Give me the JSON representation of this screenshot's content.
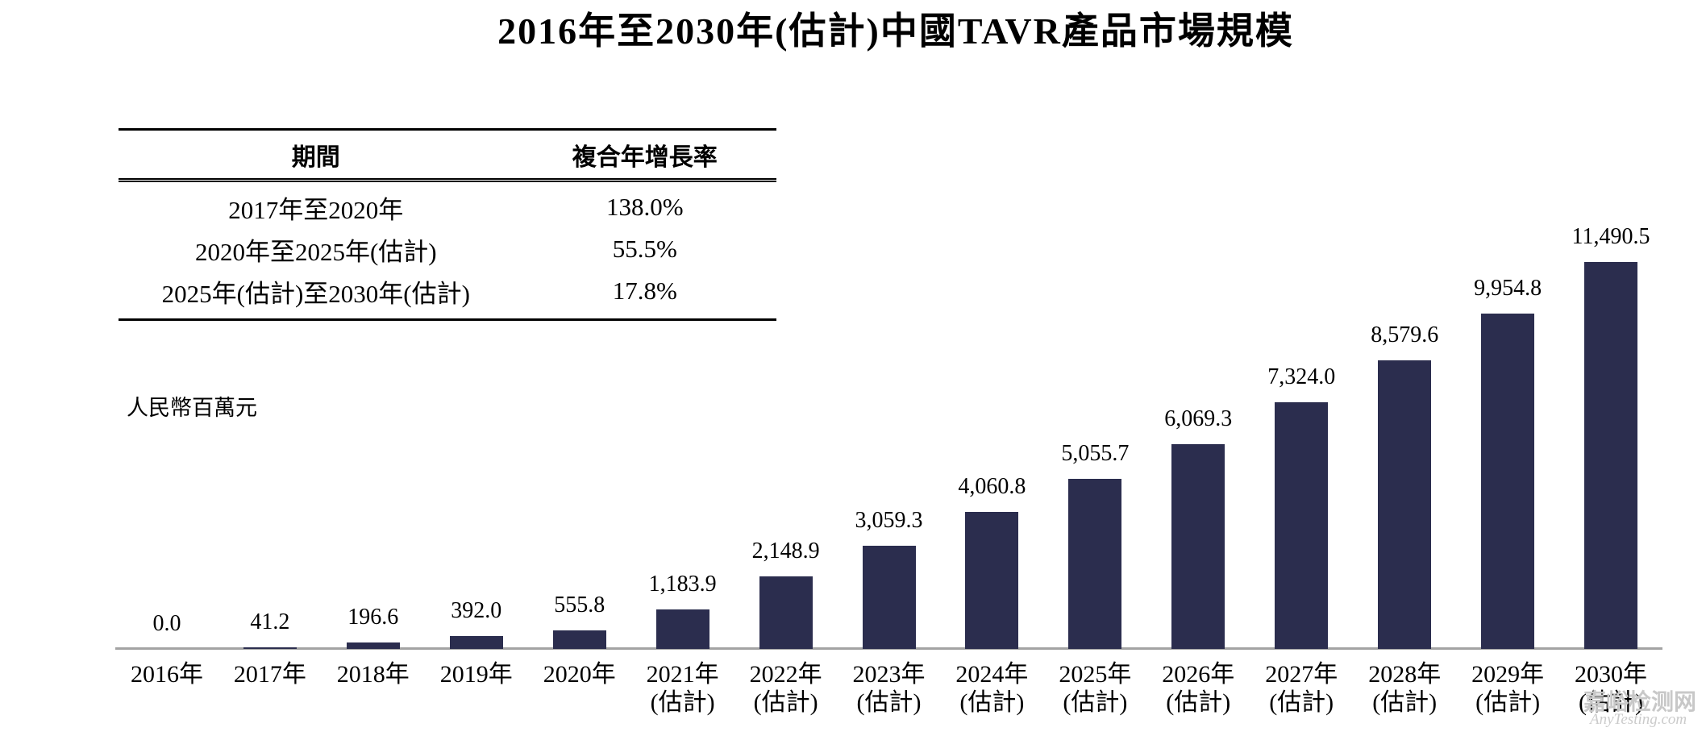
{
  "title": "2016年至2030年(估計)中國TAVR產品市場規模",
  "watermark": {
    "site_name": "嘉峪检测网",
    "site_url": "AnyTesting.com"
  },
  "chart_data": {
    "type": "bar",
    "title": "2016年至2030年(估計)中國TAVR產品市場規模",
    "unit_label": "人民幣百萬元",
    "xlabel": "",
    "ylabel": "人民幣百萬元",
    "ylim": [
      0,
      11490.5
    ],
    "grid": false,
    "legend": null,
    "bar_color": "#2B2D4E",
    "axis_color": "#A3A3A3",
    "categories": [
      {
        "label": "2016年",
        "sublabel": ""
      },
      {
        "label": "2017年",
        "sublabel": ""
      },
      {
        "label": "2018年",
        "sublabel": ""
      },
      {
        "label": "2019年",
        "sublabel": ""
      },
      {
        "label": "2020年",
        "sublabel": ""
      },
      {
        "label": "2021年",
        "sublabel": "(估計)"
      },
      {
        "label": "2022年",
        "sublabel": "(估計)"
      },
      {
        "label": "2023年",
        "sublabel": "(估計)"
      },
      {
        "label": "2024年",
        "sublabel": "(估計)"
      },
      {
        "label": "2025年",
        "sublabel": "(估計)"
      },
      {
        "label": "2026年",
        "sublabel": "(估計)"
      },
      {
        "label": "2027年",
        "sublabel": "(估計)"
      },
      {
        "label": "2028年",
        "sublabel": "(估計)"
      },
      {
        "label": "2029年",
        "sublabel": "(估計)"
      },
      {
        "label": "2030年",
        "sublabel": "(估計)"
      }
    ],
    "values": [
      0.0,
      41.2,
      196.6,
      392.0,
      555.8,
      1183.9,
      2148.9,
      3059.3,
      4060.8,
      5055.7,
      6069.3,
      7324.0,
      8579.6,
      9954.8,
      11490.5
    ],
    "value_labels": [
      "0.0",
      "41.2",
      "196.6",
      "392.0",
      "555.8",
      "1,183.9",
      "2,148.9",
      "3,059.3",
      "4,060.8",
      "5,055.7",
      "6,069.3",
      "7,324.0",
      "8,579.6",
      "9,954.8",
      "11,490.5"
    ],
    "cagr_table": {
      "headers": [
        "期間",
        "複合年增長率"
      ],
      "rows": [
        {
          "period": "2017年至2020年",
          "cagr": "138.0%"
        },
        {
          "period": "2020年至2025年(估計)",
          "cagr": "55.5%"
        },
        {
          "period": "2025年(估計)至2030年(估計)",
          "cagr": "17.8%"
        }
      ]
    }
  }
}
